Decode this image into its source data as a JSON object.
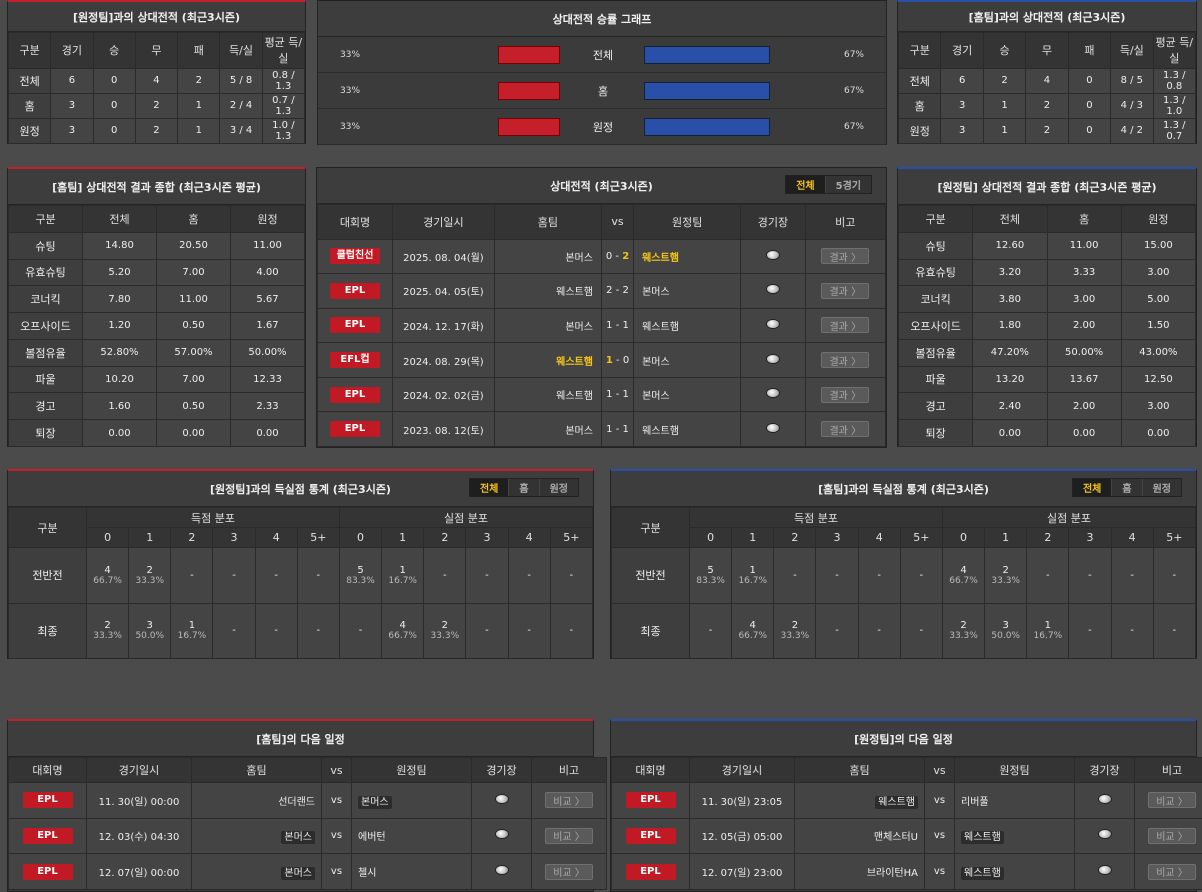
{
  "p1": {
    "title": "[원정팀]과의 상대전적 (최근3시즌)",
    "headers": [
      "구분",
      "경기",
      "승",
      "무",
      "패",
      "득/실",
      "평균 득/실"
    ],
    "rows": [
      [
        "전체",
        "6",
        "0",
        "4",
        "2",
        "5 / 8",
        "0.8 / 1.3"
      ],
      [
        "홈",
        "3",
        "0",
        "2",
        "1",
        "2 / 4",
        "0.7 / 1.3"
      ],
      [
        "원정",
        "3",
        "0",
        "2",
        "1",
        "3 / 4",
        "1.0 / 1.3"
      ]
    ]
  },
  "graph": {
    "title": "상대전적 승률 그래프",
    "rows": [
      {
        "left": "33%",
        "label": "전체",
        "right": "67%",
        "left_frac": 0.33,
        "right_frac": 0.67
      },
      {
        "left": "33%",
        "label": "홈",
        "right": "67%",
        "left_frac": 0.33,
        "right_frac": 0.67
      },
      {
        "left": "33%",
        "label": "원정",
        "right": "67%",
        "left_frac": 0.33,
        "right_frac": 0.67
      }
    ]
  },
  "p3": {
    "title": "[홈팀]과의 상대전적 (최근3시즌)",
    "headers": [
      "구분",
      "경기",
      "승",
      "무",
      "패",
      "득/실",
      "평균 득/실"
    ],
    "rows": [
      [
        "전체",
        "6",
        "2",
        "4",
        "0",
        "8 / 5",
        "1.3 / 0.8"
      ],
      [
        "홈",
        "3",
        "1",
        "2",
        "0",
        "4 / 3",
        "1.3 / 1.0"
      ],
      [
        "원정",
        "3",
        "1",
        "2",
        "0",
        "4 / 2",
        "1.3 / 0.7"
      ]
    ]
  },
  "p4": {
    "title": "[홈팀] 상대전적 결과 종합 (최근3시즌 평균)",
    "headers": [
      "구분",
      "전체",
      "홈",
      "원정"
    ],
    "rows": [
      [
        "슈팅",
        "14.80",
        "20.50",
        "11.00"
      ],
      [
        "유효슈팅",
        "5.20",
        "7.00",
        "4.00"
      ],
      [
        "코너킥",
        "7.80",
        "11.00",
        "5.67"
      ],
      [
        "오프사이드",
        "1.20",
        "0.50",
        "1.67"
      ],
      [
        "볼점유율",
        "52.80%",
        "57.00%",
        "50.00%"
      ],
      [
        "파울",
        "10.20",
        "7.00",
        "12.33"
      ],
      [
        "경고",
        "1.60",
        "0.50",
        "2.33"
      ],
      [
        "퇴장",
        "0.00",
        "0.00",
        "0.00"
      ]
    ]
  },
  "p5": {
    "title": "상대전적 (최근3시즌)",
    "toggle": [
      "전체",
      "5경기"
    ],
    "headers": [
      "대회명",
      "경기일시",
      "홈팀",
      "vs",
      "원정팀",
      "경기장",
      "비고"
    ],
    "btn": "결과 〉",
    "rows": [
      {
        "comp": "클럽친선",
        "date": "2025. 08. 04(월)",
        "home": "본머스",
        "hs": "0",
        "as": "2",
        "away": "웨스트햄",
        "hw": false,
        "aw": true
      },
      {
        "comp": "EPL",
        "date": "2025. 04. 05(토)",
        "home": "웨스트햄",
        "hs": "2",
        "as": "2",
        "away": "본머스",
        "hw": false,
        "aw": false
      },
      {
        "comp": "EPL",
        "date": "2024. 12. 17(화)",
        "home": "본머스",
        "hs": "1",
        "as": "1",
        "away": "웨스트햄",
        "hw": false,
        "aw": false
      },
      {
        "comp": "EFL컵",
        "date": "2024. 08. 29(목)",
        "home": "웨스트햄",
        "hs": "1",
        "as": "0",
        "away": "본머스",
        "hw": true,
        "aw": false
      },
      {
        "comp": "EPL",
        "date": "2024. 02. 02(금)",
        "home": "웨스트햄",
        "hs": "1",
        "as": "1",
        "away": "본머스",
        "hw": false,
        "aw": false
      },
      {
        "comp": "EPL",
        "date": "2023. 08. 12(토)",
        "home": "본머스",
        "hs": "1",
        "as": "1",
        "away": "웨스트햄",
        "hw": false,
        "aw": false
      }
    ]
  },
  "p6": {
    "title": "[원정팀] 상대전적 결과 종합 (최근3시즌 평균)",
    "headers": [
      "구분",
      "전체",
      "홈",
      "원정"
    ],
    "rows": [
      [
        "슈팅",
        "12.60",
        "11.00",
        "15.00"
      ],
      [
        "유효슈팅",
        "3.20",
        "3.33",
        "3.00"
      ],
      [
        "코너킥",
        "3.80",
        "3.00",
        "5.00"
      ],
      [
        "오프사이드",
        "1.80",
        "2.00",
        "1.50"
      ],
      [
        "볼점유율",
        "47.20%",
        "50.00%",
        "43.00%"
      ],
      [
        "파울",
        "13.20",
        "13.67",
        "12.50"
      ],
      [
        "경고",
        "2.40",
        "2.00",
        "3.00"
      ],
      [
        "퇴장",
        "0.00",
        "0.00",
        "0.00"
      ]
    ]
  },
  "p7": {
    "title": "[원정팀]과의 득실점 통계 (최근3시즌)",
    "toggle": [
      "전체",
      "홈",
      "원정"
    ],
    "col0": "구분",
    "g1": "득점 분포",
    "g2": "실점 분포",
    "cols": [
      "0",
      "1",
      "2",
      "3",
      "4",
      "5+",
      "0",
      "1",
      "2",
      "3",
      "4",
      "5+"
    ],
    "rows": [
      {
        "label": "전반전",
        "cells": [
          [
            "4",
            "66.7%"
          ],
          [
            "2",
            "33.3%"
          ],
          [
            "-",
            ""
          ],
          [
            "-",
            ""
          ],
          [
            "-",
            ""
          ],
          [
            "-",
            ""
          ],
          [
            "5",
            "83.3%"
          ],
          [
            "1",
            "16.7%"
          ],
          [
            "-",
            ""
          ],
          [
            "-",
            ""
          ],
          [
            "-",
            ""
          ],
          [
            "-",
            ""
          ]
        ]
      },
      {
        "label": "최종",
        "cells": [
          [
            "2",
            "33.3%"
          ],
          [
            "3",
            "50.0%"
          ],
          [
            "1",
            "16.7%"
          ],
          [
            "-",
            ""
          ],
          [
            "-",
            ""
          ],
          [
            "-",
            ""
          ],
          [
            "-",
            ""
          ],
          [
            "4",
            "66.7%"
          ],
          [
            "2",
            "33.3%"
          ],
          [
            "-",
            ""
          ],
          [
            "-",
            ""
          ],
          [
            "-",
            ""
          ]
        ]
      }
    ]
  },
  "p8": {
    "title": "[홈팀]과의 득실점 통계 (최근3시즌)",
    "toggle": [
      "전체",
      "홈",
      "원정"
    ],
    "col0": "구분",
    "g1": "득점 분포",
    "g2": "실점 분포",
    "cols": [
      "0",
      "1",
      "2",
      "3",
      "4",
      "5+",
      "0",
      "1",
      "2",
      "3",
      "4",
      "5+"
    ],
    "rows": [
      {
        "label": "전반전",
        "cells": [
          [
            "5",
            "83.3%"
          ],
          [
            "1",
            "16.7%"
          ],
          [
            "-",
            ""
          ],
          [
            "-",
            ""
          ],
          [
            "-",
            ""
          ],
          [
            "-",
            ""
          ],
          [
            "4",
            "66.7%"
          ],
          [
            "2",
            "33.3%"
          ],
          [
            "-",
            ""
          ],
          [
            "-",
            ""
          ],
          [
            "-",
            ""
          ],
          [
            "-",
            ""
          ]
        ]
      },
      {
        "label": "최종",
        "cells": [
          [
            "-",
            ""
          ],
          [
            "4",
            "66.7%"
          ],
          [
            "2",
            "33.3%"
          ],
          [
            "-",
            ""
          ],
          [
            "-",
            ""
          ],
          [
            "-",
            ""
          ],
          [
            "2",
            "33.3%"
          ],
          [
            "3",
            "50.0%"
          ],
          [
            "1",
            "16.7%"
          ],
          [
            "-",
            ""
          ],
          [
            "-",
            ""
          ],
          [
            "-",
            ""
          ]
        ]
      }
    ]
  },
  "p9": {
    "title": "[홈팀]의 다음 일정",
    "headers": [
      "대회명",
      "경기일시",
      "홈팀",
      "vs",
      "원정팀",
      "경기장",
      "비고"
    ],
    "btn": "비교 〉",
    "rows": [
      {
        "comp": "EPL",
        "date": "11. 30(일) 00:00",
        "home": "선더랜드",
        "away": "본머스",
        "hb": false,
        "ab": true
      },
      {
        "comp": "EPL",
        "date": "12. 03(수) 04:30",
        "home": "본머스",
        "away": "에버턴",
        "hb": true,
        "ab": false
      },
      {
        "comp": "EPL",
        "date": "12. 07(일) 00:00",
        "home": "본머스",
        "away": "첼시",
        "hb": true,
        "ab": false
      }
    ]
  },
  "p10": {
    "title": "[원정팀]의 다음 일정",
    "headers": [
      "대회명",
      "경기일시",
      "홈팀",
      "vs",
      "원정팀",
      "경기장",
      "비고"
    ],
    "btn": "비교 〉",
    "rows": [
      {
        "comp": "EPL",
        "date": "11. 30(일) 23:05",
        "home": "웨스트햄",
        "away": "리버풀",
        "hb": true,
        "ab": false
      },
      {
        "comp": "EPL",
        "date": "12. 05(금) 05:00",
        "home": "맨체스터U",
        "away": "웨스트햄",
        "hb": false,
        "ab": true
      },
      {
        "comp": "EPL",
        "date": "12. 07(일) 23:00",
        "home": "브라이턴HA",
        "away": "웨스트햄",
        "hb": false,
        "ab": true
      }
    ]
  },
  "colors": {
    "red": "#c41f2a",
    "blue": "#2a4fa8",
    "win": "#f5c518"
  }
}
